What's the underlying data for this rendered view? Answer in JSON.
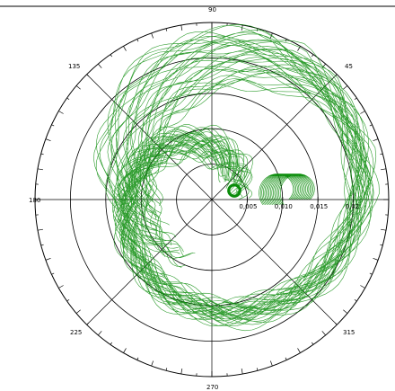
{
  "chart_data": {
    "type": "polar-line",
    "title": "",
    "angle_labels": [
      "90",
      "45",
      "135",
      "180",
      "225",
      "270",
      "315"
    ],
    "angle_values_deg": [
      90,
      45,
      135,
      180,
      225,
      270,
      315
    ],
    "radial_ticks": [
      0.005,
      0.01,
      0.015,
      0.02
    ],
    "radial_tick_labels": [
      "0,005",
      "0,010",
      "0,015",
      "0,02"
    ],
    "radial_max": 0.025,
    "grid": true,
    "series": [
      {
        "color": "#0a8c0a",
        "description_points": [
          {
            "theta_deg": 0,
            "r": 0.004
          },
          {
            "theta_deg": 20,
            "r": 0.0055
          },
          {
            "theta_deg": 60,
            "r": 0.008
          },
          {
            "theta_deg": 100,
            "r": 0.0105
          },
          {
            "theta_deg": 140,
            "r": 0.0125
          },
          {
            "theta_deg": 180,
            "r": 0.0135
          },
          {
            "theta_deg": 220,
            "r": 0.0155
          },
          {
            "theta_deg": 260,
            "r": 0.0175
          },
          {
            "theta_deg": 300,
            "r": 0.02
          },
          {
            "theta_deg": 340,
            "r": 0.0225
          },
          {
            "theta_deg": 360,
            "r": 0.024
          },
          {
            "theta_deg": 400,
            "r": 0.022
          },
          {
            "theta_deg": 440,
            "r": 0.0175
          },
          {
            "theta_deg": 480,
            "r": 0.013
          },
          {
            "theta_deg": 520,
            "r": 0.0095
          },
          {
            "theta_deg": 540,
            "r": 0.009
          }
        ]
      }
    ]
  }
}
